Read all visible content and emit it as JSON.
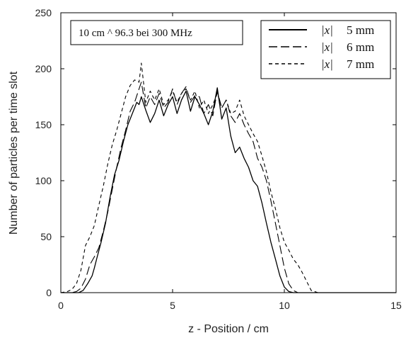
{
  "chart_data": {
    "type": "line",
    "title": "",
    "xlabel": "z - Position / cm",
    "ylabel": "Number of particles per time slot",
    "xlim": [
      0,
      15
    ],
    "ylim": [
      0,
      250
    ],
    "xticks": [
      0,
      5,
      10,
      15
    ],
    "yticks": [
      0,
      50,
      100,
      150,
      200,
      250
    ],
    "grid": false,
    "legend_position": "top-right",
    "annotation": "10 cm ^ 96.3   bei 300 MHz",
    "series": [
      {
        "name": "5 mm",
        "legend_math": "|x|",
        "dash": "solid",
        "color": "#000000",
        "x": [
          0.0,
          0.5,
          0.8,
          1.0,
          1.2,
          1.4,
          1.5,
          1.6,
          1.8,
          2.0,
          2.2,
          2.4,
          2.6,
          2.8,
          3.0,
          3.2,
          3.4,
          3.5,
          3.6,
          3.8,
          4.0,
          4.2,
          4.4,
          4.6,
          4.8,
          5.0,
          5.2,
          5.4,
          5.6,
          5.8,
          6.0,
          6.2,
          6.4,
          6.6,
          6.8,
          7.0,
          7.2,
          7.4,
          7.6,
          7.8,
          8.0,
          8.2,
          8.4,
          8.6,
          8.8,
          9.0,
          9.2,
          9.4,
          9.6,
          9.8,
          10.0,
          10.2,
          10.4,
          10.6,
          11.0,
          12.0,
          15.0
        ],
        "y": [
          0,
          0,
          0,
          2,
          8,
          15,
          22,
          30,
          45,
          62,
          85,
          105,
          118,
          135,
          150,
          160,
          170,
          168,
          175,
          163,
          152,
          160,
          172,
          158,
          168,
          175,
          160,
          172,
          180,
          162,
          175,
          168,
          160,
          150,
          162,
          183,
          155,
          165,
          140,
          125,
          130,
          120,
          112,
          100,
          95,
          80,
          62,
          45,
          30,
          15,
          5,
          1,
          0,
          0,
          0,
          0,
          0
        ]
      },
      {
        "name": "6 mm",
        "legend_math": "|x|",
        "dash": "long-dash",
        "color": "#000000",
        "x": [
          0.0,
          0.5,
          0.7,
          0.9,
          1.1,
          1.3,
          1.5,
          1.7,
          1.9,
          2.1,
          2.3,
          2.5,
          2.7,
          2.9,
          3.1,
          3.3,
          3.5,
          3.6,
          3.8,
          4.0,
          4.2,
          4.4,
          4.6,
          4.8,
          5.0,
          5.2,
          5.4,
          5.6,
          5.8,
          6.0,
          6.2,
          6.4,
          6.6,
          6.8,
          7.0,
          7.2,
          7.4,
          7.6,
          7.8,
          8.0,
          8.2,
          8.4,
          8.6,
          8.8,
          9.0,
          9.2,
          9.4,
          9.6,
          9.8,
          10.0,
          10.2,
          10.4,
          10.6,
          10.8,
          11.0,
          12.0,
          15.0
        ],
        "y": [
          0,
          0,
          1,
          4,
          12,
          25,
          32,
          40,
          55,
          72,
          92,
          112,
          130,
          145,
          162,
          170,
          182,
          188,
          165,
          175,
          168,
          178,
          165,
          170,
          182,
          168,
          178,
          184,
          170,
          176,
          175,
          160,
          168,
          158,
          180,
          165,
          172,
          158,
          152,
          160,
          150,
          142,
          135,
          120,
          112,
          100,
          82,
          62,
          42,
          22,
          8,
          2,
          0,
          0,
          0,
          0,
          0
        ]
      },
      {
        "name": "7 mm",
        "legend_math": "|x|",
        "dash": "short-dash",
        "color": "#000000",
        "x": [
          0.0,
          0.3,
          0.5,
          0.7,
          0.9,
          1.1,
          1.3,
          1.5,
          1.7,
          1.9,
          2.1,
          2.3,
          2.5,
          2.7,
          2.9,
          3.1,
          3.3,
          3.5,
          3.6,
          3.8,
          4.0,
          4.2,
          4.4,
          4.6,
          4.8,
          5.0,
          5.2,
          5.4,
          5.6,
          5.8,
          6.0,
          6.2,
          6.4,
          6.6,
          6.8,
          7.0,
          7.2,
          7.4,
          7.6,
          7.8,
          8.0,
          8.2,
          8.4,
          8.6,
          8.8,
          9.0,
          9.2,
          9.4,
          9.6,
          9.8,
          10.0,
          10.2,
          10.4,
          10.6,
          10.8,
          11.0,
          11.2,
          11.5,
          12.0,
          15.0
        ],
        "y": [
          0,
          1,
          3,
          8,
          20,
          42,
          50,
          60,
          78,
          95,
          115,
          132,
          145,
          160,
          175,
          185,
          190,
          188,
          205,
          170,
          180,
          172,
          182,
          168,
          172,
          180,
          170,
          178,
          182,
          172,
          180,
          165,
          172,
          160,
          168,
          178,
          165,
          172,
          160,
          162,
          172,
          158,
          150,
          142,
          135,
          122,
          108,
          90,
          75,
          58,
          45,
          38,
          30,
          25,
          18,
          10,
          2,
          0,
          0,
          0
        ]
      }
    ]
  }
}
